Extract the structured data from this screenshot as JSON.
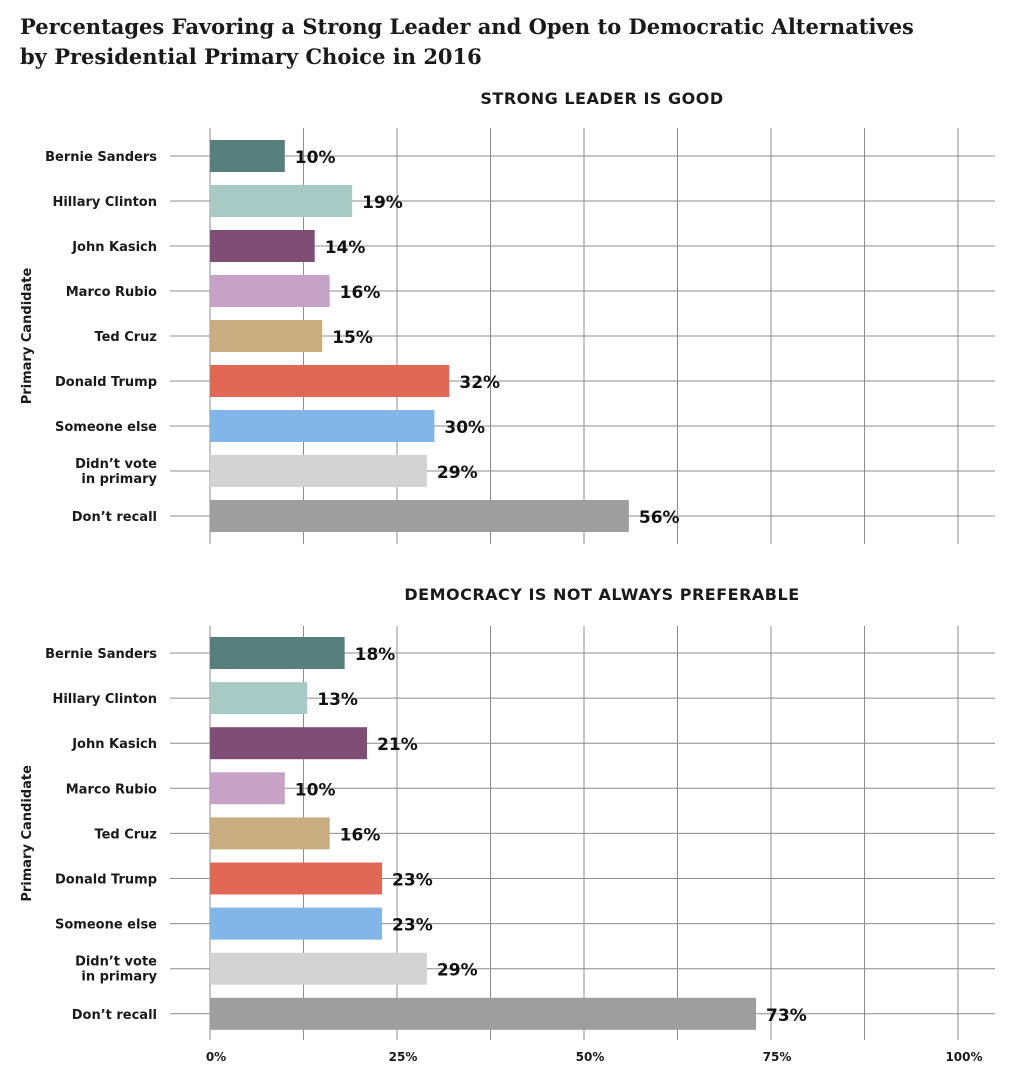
{
  "title_lines": [
    "Percentages Favoring a Strong Leader and Open to Democratic Alternatives",
    "by Presidential Primary Choice in 2016"
  ],
  "chart_data": [
    {
      "type": "bar",
      "orientation": "horizontal",
      "title": "STRONG LEADER IS GOOD",
      "ylabel": "Primary Candidate",
      "categories": [
        "Bernie Sanders",
        "Hillary Clinton",
        "John Kasich",
        "Marco Rubio",
        "Ted Cruz",
        "Donald Trump",
        "Someone else",
        "Didn't vote in primary",
        "Don't recall"
      ],
      "values": [
        10,
        19,
        14,
        16,
        15,
        32,
        30,
        29,
        56
      ],
      "data_labels": [
        "10%",
        "19%",
        "14%",
        "16%",
        "15%",
        "32%",
        "30%",
        "29%",
        "56%"
      ],
      "colors": [
        "#577f7c",
        "#a7cbc4",
        "#7f4e75",
        "#c6a2c6",
        "#c8ad80",
        "#e06855",
        "#83b6e8",
        "#d3d3d3",
        "#9e9e9e"
      ],
      "xlim": [
        0,
        100
      ],
      "grid": true
    },
    {
      "type": "bar",
      "orientation": "horizontal",
      "title": "DEMOCRACY IS NOT ALWAYS PREFERABLE",
      "ylabel": "Primary Candidate",
      "categories": [
        "Bernie Sanders",
        "Hillary Clinton",
        "John Kasich",
        "Marco Rubio",
        "Ted Cruz",
        "Donald Trump",
        "Someone else",
        "Didn't vote in primary",
        "Don't recall"
      ],
      "values": [
        18,
        13,
        21,
        10,
        16,
        23,
        23,
        29,
        73
      ],
      "data_labels": [
        "18%",
        "13%",
        "21%",
        "10%",
        "16%",
        "23%",
        "23%",
        "29%",
        "73%"
      ],
      "colors": [
        "#577f7c",
        "#a7cbc4",
        "#7f4e75",
        "#c6a2c6",
        "#c8ad80",
        "#e06855",
        "#83b6e8",
        "#d3d3d3",
        "#9e9e9e"
      ],
      "xlim": [
        0,
        100
      ],
      "xticks": [
        "0%",
        "25%",
        "50%",
        "75%",
        "100%"
      ],
      "grid": true
    }
  ],
  "category_display": [
    [
      "Bernie Sanders"
    ],
    [
      "Hillary Clinton"
    ],
    [
      "John Kasich"
    ],
    [
      "Marco Rubio"
    ],
    [
      "Ted Cruz"
    ],
    [
      "Donald Trump"
    ],
    [
      "Someone else"
    ],
    [
      "Didn’t vote",
      "in primary"
    ],
    [
      "Don’t recall"
    ]
  ]
}
